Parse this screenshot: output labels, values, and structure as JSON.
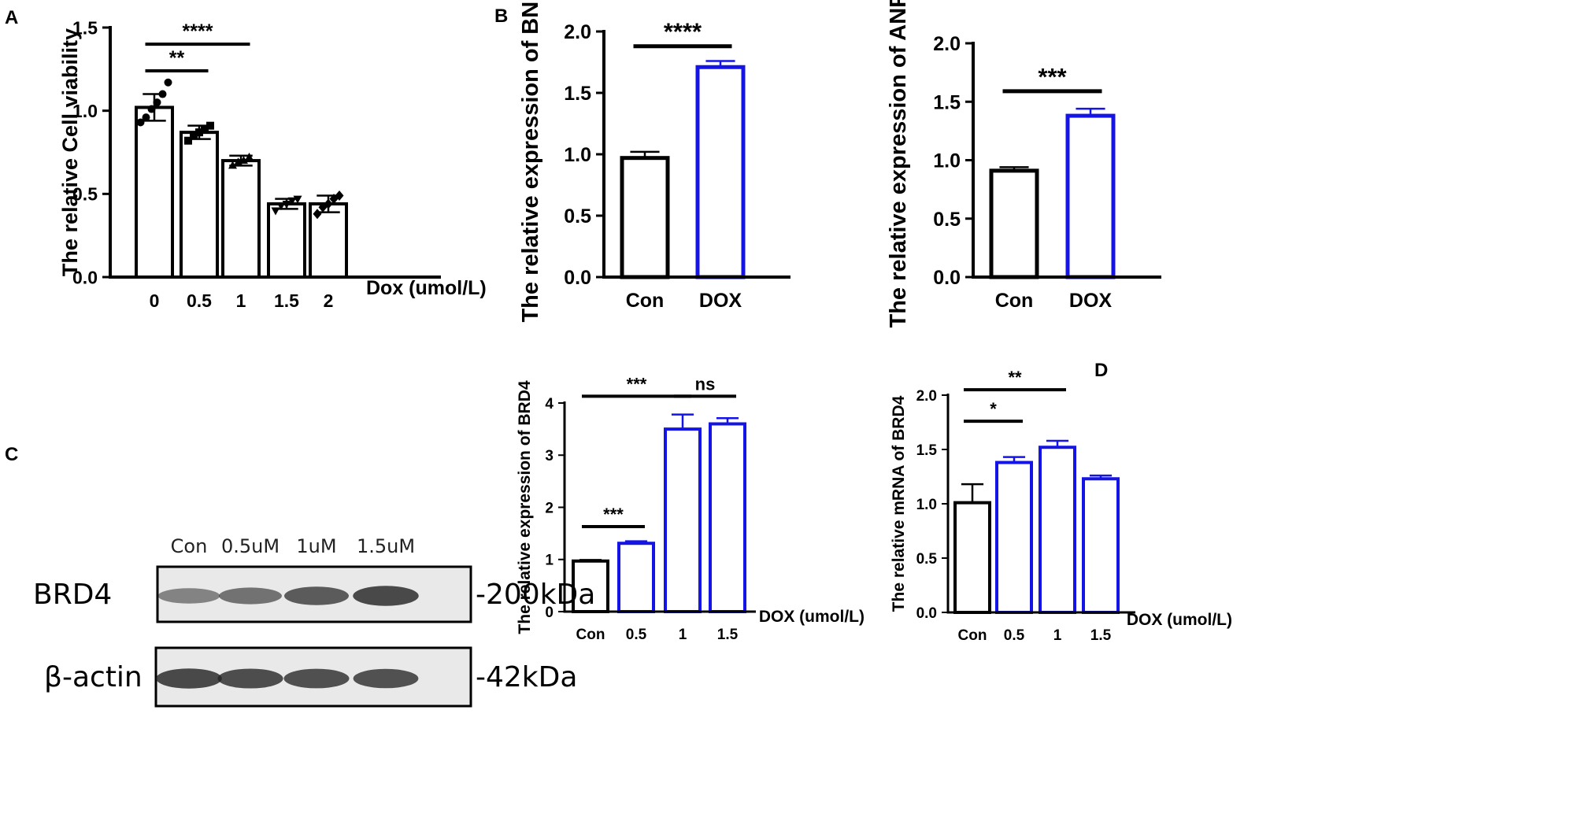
{
  "figure": {
    "background": "#ffffff",
    "ink": "#000000",
    "accent": "#1414e6"
  },
  "chart_data": [
    {
      "panel": "A",
      "type": "bar",
      "ylabel": "The relative Cell viability",
      "xlabel": "Dox (umol/L)",
      "categories": [
        "0",
        "0.5",
        "1",
        "1.5",
        "2"
      ],
      "values": [
        1.02,
        0.87,
        0.7,
        0.44,
        0.44
      ],
      "errors": [
        0.08,
        0.04,
        0.03,
        0.03,
        0.05
      ],
      "colors": [
        "#000000",
        "#000000",
        "#000000",
        "#000000",
        "#000000"
      ],
      "points": [
        [
          0.93,
          0.96,
          1.01,
          1.05,
          1.1,
          1.17
        ],
        [
          0.82,
          0.85,
          0.87,
          0.89,
          0.91
        ],
        [
          0.67,
          0.69,
          0.7,
          0.72
        ],
        [
          0.4,
          0.43,
          0.44,
          0.46,
          0.47
        ],
        [
          0.38,
          0.42,
          0.44,
          0.47,
          0.49
        ]
      ],
      "ylim": [
        0,
        1.5
      ],
      "yticks": [
        "0.0",
        "0.5",
        "1.0",
        "1.5"
      ],
      "significance": [
        {
          "from": 0,
          "to": 2,
          "label": "****",
          "y": 1.4
        },
        {
          "from": 0,
          "to": 1,
          "label": "**",
          "y": 1.24
        }
      ]
    },
    {
      "panel": "B",
      "type": "bar",
      "ylabel": "The relative expression of BNP",
      "xlabel": "",
      "categories": [
        "Con",
        "DOX"
      ],
      "values": [
        0.97,
        1.71
      ],
      "errors": [
        0.05,
        0.05
      ],
      "colors": [
        "#000000",
        "#1414e6"
      ],
      "ylim": [
        0,
        2.0
      ],
      "yticks": [
        "0.0",
        "0.5",
        "1.0",
        "1.5",
        "2.0"
      ],
      "significance": [
        {
          "from": 0,
          "to": 1,
          "label": "****",
          "y": 1.88
        }
      ]
    },
    {
      "panel": "",
      "type": "bar",
      "ylabel": "The relative expression of ANP",
      "xlabel": "",
      "categories": [
        "Con",
        "DOX"
      ],
      "values": [
        0.91,
        1.38
      ],
      "errors": [
        0.03,
        0.06
      ],
      "colors": [
        "#000000",
        "#1414e6"
      ],
      "ylim": [
        0,
        2.0
      ],
      "yticks": [
        "0.0",
        "0.5",
        "1.0",
        "1.5",
        "2.0"
      ],
      "significance": [
        {
          "from": 0,
          "to": 1,
          "label": "***",
          "y": 1.59
        }
      ]
    },
    {
      "panel": "",
      "type": "bar",
      "ylabel": "The relative expression of BRD4",
      "xlabel": "DOX (umol/L)",
      "categories": [
        "Con",
        "0.5",
        "1",
        "1.5"
      ],
      "values": [
        0.97,
        1.31,
        3.5,
        3.6
      ],
      "errors": [
        0.02,
        0.04,
        0.28,
        0.11
      ],
      "colors": [
        "#000000",
        "#1414e6",
        "#1414e6",
        "#1414e6"
      ],
      "ylim": [
        0,
        4
      ],
      "yticks": [
        "0",
        "1",
        "2",
        "3",
        "4"
      ],
      "significance": [
        {
          "from": 0,
          "to": 2,
          "label": "***",
          "y": 4.13
        },
        {
          "from": 2,
          "to": 3,
          "label": "ns",
          "y": 4.13
        },
        {
          "from": 0,
          "to": 1,
          "label": "***",
          "y": 1.63
        }
      ]
    },
    {
      "panel": "D",
      "type": "bar",
      "ylabel": "The relative mRNA of BRD4",
      "xlabel": "DOX (umol/L)",
      "categories": [
        "Con",
        "0.5",
        "1",
        "1.5"
      ],
      "values": [
        1.01,
        1.38,
        1.52,
        1.23
      ],
      "errors": [
        0.17,
        0.05,
        0.06,
        0.03
      ],
      "colors": [
        "#000000",
        "#1414e6",
        "#1414e6",
        "#1414e6"
      ],
      "ylim": [
        0,
        2.0
      ],
      "yticks": [
        "0.0",
        "0.5",
        "1.0",
        "1.5",
        "2.0"
      ],
      "significance": [
        {
          "from": 0,
          "to": 2,
          "label": "**",
          "y": 2.05
        },
        {
          "from": 0,
          "to": 1,
          "label": "*",
          "y": 1.76
        }
      ]
    }
  ],
  "blot": {
    "panel": "C",
    "lanes": [
      "Con",
      "0.5uM",
      "1uM",
      "1.5uM"
    ],
    "rows": [
      {
        "label": "BRD4",
        "size": "-200kDa",
        "intensity": [
          0.45,
          0.6,
          0.8,
          0.95
        ]
      },
      {
        "label": "β-actin",
        "size": "-42kDa",
        "intensity": [
          0.95,
          0.92,
          0.9,
          0.88
        ]
      }
    ]
  }
}
